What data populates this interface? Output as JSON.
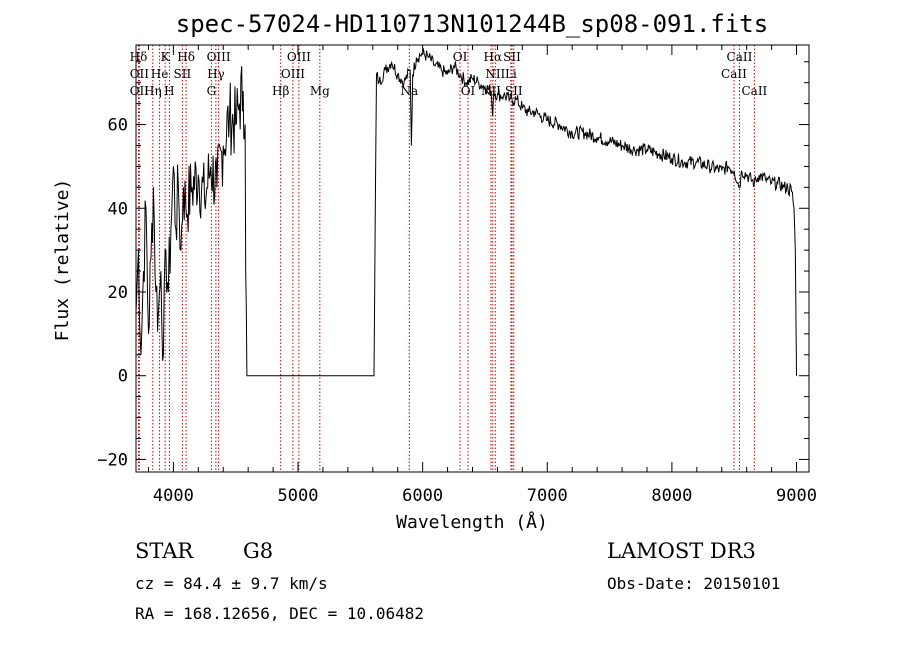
{
  "chart_data": {
    "type": "line",
    "title": "spec-57024-HD110713N101244B_sp08-091.fits",
    "xlabel": "Wavelength (Å)",
    "ylabel": "Flux (relative)",
    "xlim": [
      3700,
      9100
    ],
    "ylim": [
      -23,
      79
    ],
    "xticks": [
      4000,
      5000,
      6000,
      7000,
      8000,
      9000
    ],
    "yticks": [
      -20,
      0,
      20,
      40,
      60
    ],
    "grid": false,
    "series": [
      {
        "name": "flux",
        "x": [
          3700,
          3720,
          3740,
          3760,
          3780,
          3800,
          3820,
          3840,
          3860,
          3880,
          3900,
          3920,
          3940,
          3960,
          3980,
          4000,
          4020,
          4040,
          4060,
          4080,
          4100,
          4150,
          4200,
          4250,
          4300,
          4350,
          4400,
          4450,
          4500,
          4530,
          4560,
          4575,
          4580,
          4590,
          4600,
          5000,
          5400,
          5610,
          5620,
          5630,
          5650,
          5700,
          5750,
          5800,
          5850,
          5900,
          5910,
          5920,
          5950,
          6000,
          6050,
          6100,
          6150,
          6200,
          6250,
          6300,
          6350,
          6400,
          6450,
          6500,
          6550,
          6562,
          6570,
          6600,
          6650,
          6700,
          6750,
          6800,
          6850,
          6900,
          6950,
          7000,
          7100,
          7200,
          7300,
          7400,
          7500,
          7600,
          7700,
          7800,
          7900,
          8000,
          8100,
          8200,
          8300,
          8400,
          8450,
          8500,
          8542,
          8560,
          8600,
          8662,
          8700,
          8750,
          8800,
          8850,
          8900,
          8930,
          8960,
          8980,
          8990,
          9000
        ],
        "values": [
          15,
          30,
          5,
          25,
          40,
          10,
          28,
          45,
          20,
          15,
          25,
          5,
          30,
          20,
          35,
          50,
          35,
          45,
          30,
          45,
          40,
          45,
          48,
          42,
          50,
          45,
          55,
          62,
          60,
          65,
          68,
          60,
          25,
          0,
          0,
          0,
          0,
          0,
          40,
          72,
          70,
          73,
          75,
          72,
          70,
          73,
          55,
          72,
          76,
          77,
          76,
          74,
          73,
          72,
          74,
          72,
          70,
          71,
          70,
          69,
          68,
          62,
          68,
          67,
          67,
          66,
          66,
          64,
          63,
          63,
          62,
          61,
          60,
          58,
          58,
          57,
          56,
          55,
          54,
          54,
          53,
          52,
          51,
          51,
          50,
          49,
          50,
          49,
          45,
          49,
          48,
          46,
          48,
          47,
          46,
          46,
          45,
          45,
          44,
          40,
          30,
          0
        ]
      }
    ],
    "spectral_lines": [
      {
        "label": "Hδ",
        "wavelength": 3720,
        "row": 0
      },
      {
        "label": "K",
        "wavelength": 3934,
        "row": 0
      },
      {
        "label": "Hδ",
        "wavelength": 4102,
        "row": 0
      },
      {
        "label": "OIII",
        "wavelength": 4363,
        "row": 0
      },
      {
        "label": "OIII",
        "wavelength": 5007,
        "row": 0
      },
      {
        "label": "OI",
        "wavelength": 6300,
        "row": 0
      },
      {
        "label": "Hα",
        "wavelength": 6563,
        "row": 0
      },
      {
        "label": "SII",
        "wavelength": 6717,
        "row": 0
      },
      {
        "label": "CaII",
        "wavelength": 8542,
        "row": 0
      },
      {
        "label": "OII",
        "wavelength": 3727,
        "row": 1
      },
      {
        "label": "He",
        "wavelength": 3889,
        "row": 1
      },
      {
        "label": "SII",
        "wavelength": 4072,
        "row": 1
      },
      {
        "label": "Hγ",
        "wavelength": 4341,
        "row": 1
      },
      {
        "label": "OIII",
        "wavelength": 4959,
        "row": 1
      },
      {
        "label": "NII",
        "wavelength": 6583,
        "row": 1
      },
      {
        "label": "Li",
        "wavelength": 6708,
        "row": 1
      },
      {
        "label": "CaII",
        "wavelength": 8498,
        "row": 1
      },
      {
        "label": "OII",
        "wavelength": 3727,
        "row": 2
      },
      {
        "label": "Hη",
        "wavelength": 3835,
        "row": 2
      },
      {
        "label": "H",
        "wavelength": 3968,
        "row": 2
      },
      {
        "label": "G",
        "wavelength": 4305,
        "row": 2
      },
      {
        "label": "Hβ",
        "wavelength": 4861,
        "row": 2
      },
      {
        "label": "Mg",
        "wavelength": 5175,
        "row": 2
      },
      {
        "label": "Na",
        "wavelength": 5893,
        "row": 2
      },
      {
        "label": "OI",
        "wavelength": 6364,
        "row": 2
      },
      {
        "label": "NII",
        "wavelength": 6548,
        "row": 2
      },
      {
        "label": "SII",
        "wavelength": 6731,
        "row": 2
      },
      {
        "label": "CaII",
        "wavelength": 8662,
        "row": 2
      }
    ]
  },
  "info": {
    "object_class": "STAR",
    "subclass": "G8",
    "survey": "LAMOST DR3",
    "cz": "cz = 84.4 ± 9.7 km/s",
    "obs_date": "Obs-Date: 20150101",
    "coords": "RA = 168.12656, DEC =  10.06482"
  },
  "colors": {
    "spectrum": "#000000",
    "line_marker": "#cc0000",
    "axes": "#000000"
  }
}
